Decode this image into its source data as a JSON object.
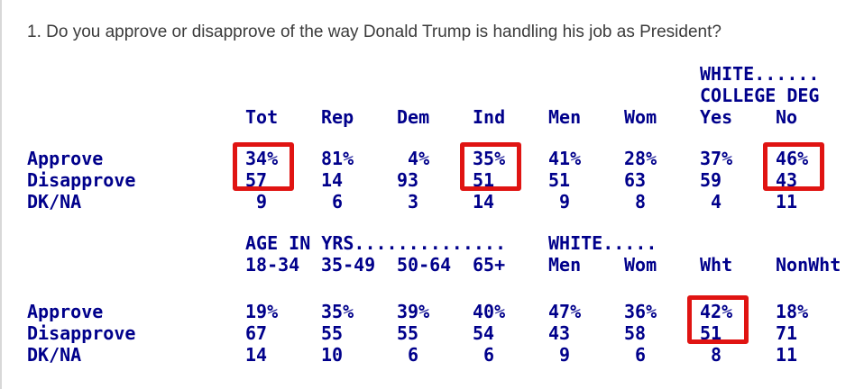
{
  "title": "1. Do you approve or disapprove of the way Donald Trump is handling his job as President?",
  "colors": {
    "table_text": "#00008B",
    "title_text": "#3B3B3B",
    "highlight_box": "#E01412",
    "page_left_border": "#D8D8D8"
  },
  "table_top": {
    "group_header": {
      "line1": "WHITE......",
      "line2": "COLLEGE DEG"
    },
    "columns": [
      "Tot",
      "Rep",
      "Dem",
      "Ind",
      "Men",
      "Wom",
      "Yes",
      "No"
    ],
    "rows": [
      {
        "label": "Approve",
        "cells": [
          {
            "v": "34",
            "s": "%"
          },
          {
            "v": "81",
            "s": "%"
          },
          {
            "v": "4",
            "s": "%"
          },
          {
            "v": "35",
            "s": "%"
          },
          {
            "v": "41",
            "s": "%"
          },
          {
            "v": "28",
            "s": "%"
          },
          {
            "v": "37",
            "s": "%"
          },
          {
            "v": "46",
            "s": "%"
          }
        ]
      },
      {
        "label": "Disapprove",
        "cells": [
          {
            "v": "57"
          },
          {
            "v": "14"
          },
          {
            "v": "93"
          },
          {
            "v": "51"
          },
          {
            "v": "51"
          },
          {
            "v": "63"
          },
          {
            "v": "59"
          },
          {
            "v": "43"
          }
        ]
      },
      {
        "label": "DK/NA",
        "cells": [
          {
            "v": "9"
          },
          {
            "v": "6"
          },
          {
            "v": "3"
          },
          {
            "v": "14"
          },
          {
            "v": "9"
          },
          {
            "v": "8"
          },
          {
            "v": "4"
          },
          {
            "v": "11"
          }
        ]
      }
    ],
    "highlighted_columns": [
      "Tot",
      "Ind",
      "No"
    ]
  },
  "table_bottom": {
    "group_header": {
      "line1": "AGE IN YRS..............",
      "line2": "WHITE....."
    },
    "columns": [
      "18-34",
      "35-49",
      "50-64",
      "65+",
      "Men",
      "Wom",
      "Wht",
      "NonWht"
    ],
    "rows": [
      {
        "label": "Approve",
        "cells": [
          {
            "v": "19",
            "s": "%"
          },
          {
            "v": "35",
            "s": "%"
          },
          {
            "v": "39",
            "s": "%"
          },
          {
            "v": "40",
            "s": "%"
          },
          {
            "v": "47",
            "s": "%"
          },
          {
            "v": "36",
            "s": "%"
          },
          {
            "v": "42",
            "s": "%"
          },
          {
            "v": "18",
            "s": "%"
          }
        ]
      },
      {
        "label": "Disapprove",
        "cells": [
          {
            "v": "67"
          },
          {
            "v": "55"
          },
          {
            "v": "55"
          },
          {
            "v": "54"
          },
          {
            "v": "43"
          },
          {
            "v": "58"
          },
          {
            "v": "51"
          },
          {
            "v": "71"
          }
        ]
      },
      {
        "label": "DK/NA",
        "cells": [
          {
            "v": "14"
          },
          {
            "v": "10"
          },
          {
            "v": "6"
          },
          {
            "v": "6"
          },
          {
            "v": "9"
          },
          {
            "v": "6"
          },
          {
            "v": "8"
          },
          {
            "v": "11"
          }
        ]
      }
    ],
    "highlighted_columns": [
      "Wht"
    ]
  }
}
